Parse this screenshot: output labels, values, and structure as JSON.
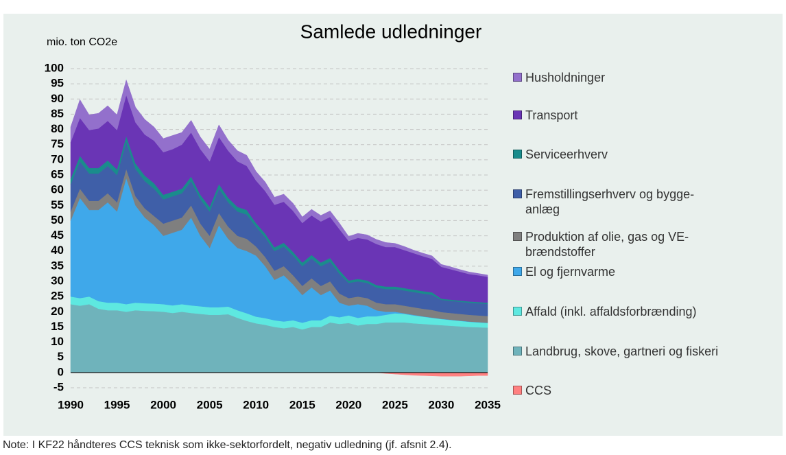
{
  "chart_data": {
    "type": "stacked_area",
    "title": "Samlede udledninger",
    "y_label": "mio. ton CO2e",
    "note": "Note: I KF22 håndteres CCS teknisk som ikke-sektorfordelt, negativ udledning (jf. afsnit 2.4).",
    "x": [
      1990,
      1991,
      1992,
      1993,
      1994,
      1995,
      1996,
      1997,
      1998,
      1999,
      2000,
      2001,
      2002,
      2003,
      2004,
      2005,
      2006,
      2007,
      2008,
      2009,
      2010,
      2011,
      2012,
      2013,
      2014,
      2015,
      2016,
      2017,
      2018,
      2019,
      2020,
      2021,
      2022,
      2023,
      2024,
      2025,
      2026,
      2027,
      2028,
      2029,
      2030,
      2031,
      2032,
      2033,
      2034,
      2035
    ],
    "xlim": [
      1990,
      2035
    ],
    "xticks": [
      1990,
      1995,
      2000,
      2005,
      2010,
      2015,
      2020,
      2025,
      2030,
      2035
    ],
    "ylim": [
      -5,
      100
    ],
    "yticks": [
      100,
      95,
      90,
      85,
      80,
      75,
      70,
      65,
      60,
      55,
      50,
      45,
      40,
      35,
      30,
      25,
      20,
      15,
      10,
      5,
      0,
      -5
    ],
    "grid": true,
    "legend": "right",
    "series": [
      {
        "name": "Husholdninger",
        "color": "#9370cc",
        "values": [
          5,
          6,
          5,
          5,
          5,
          5,
          5,
          5,
          5,
          4.5,
          4.5,
          4.5,
          4,
          4,
          4,
          4,
          4,
          3.5,
          3.5,
          3.5,
          3,
          3,
          2.5,
          2.5,
          2.5,
          2,
          2,
          2,
          2,
          2,
          1.5,
          1.5,
          1.5,
          1.5,
          1.5,
          1.2,
          1.2,
          1,
          1,
          1,
          0.8,
          0.8,
          0.7,
          0.7,
          0.6,
          0.6
        ]
      },
      {
        "name": "Transport",
        "color": "#6a35b5",
        "values": [
          12,
          12.5,
          12.5,
          13,
          13,
          13,
          13.5,
          13.5,
          13.5,
          14,
          14,
          14,
          14.5,
          14.5,
          15,
          15,
          15.5,
          15.5,
          15,
          14.5,
          14,
          14,
          14,
          13.5,
          13.5,
          13,
          13,
          13.5,
          13.5,
          13.5,
          13,
          13.5,
          13.5,
          13.5,
          13,
          13,
          12.5,
          12,
          11.5,
          11,
          10.5,
          10,
          9.5,
          9,
          8.8,
          8.5
        ]
      },
      {
        "name": "Serviceerhverv",
        "color": "#1a8c8c",
        "values": [
          1.8,
          1.8,
          1.8,
          1.8,
          1.8,
          1.8,
          1.8,
          1.8,
          1.8,
          1.8,
          1.5,
          1.5,
          1.5,
          1.5,
          1.5,
          1.5,
          1.5,
          1.5,
          1.5,
          1.5,
          1.2,
          1.2,
          1.2,
          1.2,
          1.2,
          1.2,
          1.2,
          1.2,
          1.2,
          1.2,
          0.8,
          0.8,
          0.8,
          0.8,
          0.8,
          0.8,
          0.8,
          0.8,
          0.8,
          0.8,
          0.4,
          0.4,
          0.4,
          0.4,
          0.4,
          0.4
        ]
      },
      {
        "name": "Fremstillingserhverv og bygge-anlæg",
        "color": "#3f5fa8",
        "values": [
          9,
          9,
          9,
          9,
          9,
          9,
          9,
          9,
          9,
          9,
          8,
          8,
          8,
          8,
          8,
          8,
          8,
          8,
          8,
          8,
          6.5,
          6.5,
          6.5,
          6.5,
          6.5,
          6.5,
          6.5,
          6.5,
          6.5,
          6.5,
          5,
          5,
          5,
          5,
          5,
          5,
          5,
          5,
          5,
          5,
          4,
          4,
          4,
          4,
          4,
          4
        ]
      },
      {
        "name": "Produktion af olie, gas og VE-brændstoffer",
        "color": "#7f7f7f",
        "values": [
          3,
          3,
          3,
          3,
          3,
          3,
          3,
          3,
          3,
          3,
          4,
          4,
          4,
          4,
          4,
          4,
          4,
          4,
          4,
          4,
          3,
          3,
          3,
          3,
          3,
          3,
          3,
          3,
          3,
          3,
          2.5,
          2.5,
          2.5,
          2.5,
          2.5,
          2.5,
          2.5,
          2.5,
          2.5,
          2.5,
          2.2,
          2.2,
          2.2,
          2.2,
          2.2,
          2.2
        ]
      },
      {
        "name": "El og fjernvarme",
        "color": "#3fa8ea",
        "values": [
          25,
          33,
          28.5,
          30,
          33,
          30,
          41.5,
          32,
          28.2,
          25.8,
          22.5,
          23.9,
          24.5,
          28.9,
          23.2,
          19.5,
          27,
          22.3,
          20.5,
          20.5,
          20.1,
          17.1,
          13.3,
          15.2,
          11.8,
          9.1,
          10.8,
          8.3,
          8.3,
          4.8,
          3.2,
          4.5,
          3.5,
          2,
          1,
          0.5,
          0.2,
          0.2,
          0.1,
          0.1,
          0.1,
          0.1,
          0.1,
          0.1,
          0.1,
          0.1
        ]
      },
      {
        "name": "Affald (inkl. affaldsforbrænding)",
        "color": "#5ee8e0",
        "values": [
          2.5,
          2.5,
          2.5,
          2.5,
          2.5,
          2.5,
          2.5,
          2.5,
          2.5,
          2.5,
          2.5,
          2.5,
          2.5,
          2.5,
          2.5,
          2.5,
          2.5,
          2.5,
          2.5,
          2.5,
          2.2,
          2.2,
          2.2,
          2.2,
          2.2,
          2.2,
          2.2,
          2.2,
          2.2,
          2.2,
          2.5,
          2.5,
          2.5,
          2.5,
          2.5,
          3,
          2.8,
          2.6,
          2.4,
          2.2,
          2,
          1.9,
          1.8,
          1.7,
          1.6,
          1.5
        ]
      },
      {
        "name": "Landbrug, skove, gartneri og fiskeri",
        "color": "#6fb3bb",
        "values": [
          22.5,
          22,
          22.5,
          21,
          20.5,
          20.5,
          20,
          20.5,
          20.3,
          20.2,
          20,
          19.6,
          20,
          19.6,
          19.3,
          19,
          19,
          19.2,
          18,
          17,
          16.2,
          15.7,
          15,
          14.6,
          15,
          14.2,
          15,
          15,
          16.5,
          16,
          16.3,
          15.5,
          16,
          16,
          16.5,
          16.5,
          16.5,
          16.2,
          16,
          15.8,
          15.6,
          15.4,
          15.2,
          15,
          14.9,
          14.8
        ]
      },
      {
        "name": "CCS",
        "color": "#ff8080",
        "values": [
          0,
          0,
          0,
          0,
          0,
          0,
          0,
          0,
          0,
          0,
          0,
          0,
          0,
          0,
          0,
          0,
          0,
          0,
          0,
          0,
          0,
          0,
          0,
          0,
          0,
          0,
          0,
          0,
          0,
          0,
          0,
          0,
          0,
          0,
          -0.3,
          -0.5,
          -0.7,
          -0.9,
          -1,
          -1.1,
          -1.2,
          -1.2,
          -1.2,
          -1.1,
          -1,
          -1
        ]
      }
    ]
  }
}
